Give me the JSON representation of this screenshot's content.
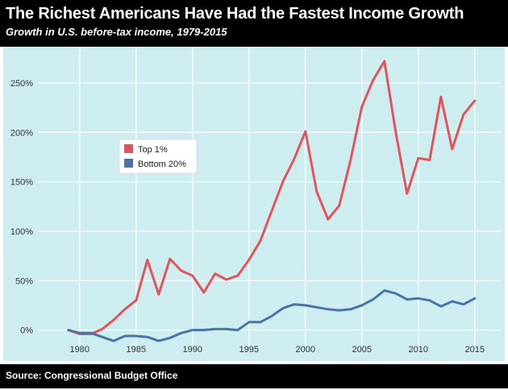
{
  "header": {
    "title": "The Richest Americans Have Had the Fastest Income Growth",
    "subtitle": "Growth in U.S. before-tax income, 1979-2015"
  },
  "footer": {
    "source": "Source: Congressional Budget Office"
  },
  "colors": {
    "header_bg": "#000000",
    "plot_bg": "#cdedf0",
    "grid": "#ffffff",
    "top1": "#e0555c",
    "bottom20": "#4a74a5"
  },
  "chart_data": {
    "type": "line",
    "title": "The Richest Americans Have Had the Fastest Income Growth",
    "subtitle": "Growth in U.S. before-tax income, 1979-2015",
    "xlabel": "",
    "ylabel": "",
    "x": [
      1979,
      1980,
      1981,
      1982,
      1983,
      1984,
      1985,
      1986,
      1987,
      1988,
      1989,
      1990,
      1991,
      1992,
      1993,
      1994,
      1995,
      1996,
      1997,
      1998,
      1999,
      2000,
      2001,
      2002,
      2003,
      2004,
      2005,
      2006,
      2007,
      2008,
      2009,
      2010,
      2011,
      2012,
      2013,
      2014,
      2015
    ],
    "xlim": [
      1976.3,
      2017.3
    ],
    "xticks": [
      1980,
      1985,
      1990,
      1995,
      2000,
      2005,
      2010,
      2015
    ],
    "ylim": [
      -0.15,
      2.85
    ],
    "yticks": [
      0,
      0.5,
      1.0,
      1.5,
      2.0,
      2.5
    ],
    "ytick_labels": [
      "0%",
      "50%",
      "100%",
      "150%",
      "200%",
      "250%"
    ],
    "grid": true,
    "legend_position": "upper-left",
    "series": [
      {
        "name": "Top 1%",
        "color": "#e0555c",
        "values": [
          0.0,
          -0.04,
          -0.04,
          0.01,
          0.1,
          0.21,
          0.3,
          0.71,
          0.36,
          0.72,
          0.6,
          0.55,
          0.38,
          0.57,
          0.51,
          0.55,
          0.71,
          0.9,
          1.2,
          1.5,
          1.73,
          2.01,
          1.4,
          1.12,
          1.26,
          1.72,
          2.26,
          2.53,
          2.72,
          2.0,
          1.38,
          1.74,
          1.72,
          2.36,
          1.83,
          2.18,
          2.32
        ]
      },
      {
        "name": "Bottom 20%",
        "color": "#4a74a5",
        "values": [
          0.0,
          -0.03,
          -0.03,
          -0.07,
          -0.11,
          -0.06,
          -0.06,
          -0.07,
          -0.11,
          -0.08,
          -0.03,
          0.0,
          0.0,
          0.01,
          0.01,
          0.0,
          0.08,
          0.08,
          0.14,
          0.22,
          0.26,
          0.25,
          0.23,
          0.21,
          0.2,
          0.21,
          0.25,
          0.31,
          0.4,
          0.37,
          0.31,
          0.32,
          0.3,
          0.24,
          0.29,
          0.26,
          0.32
        ]
      }
    ]
  }
}
